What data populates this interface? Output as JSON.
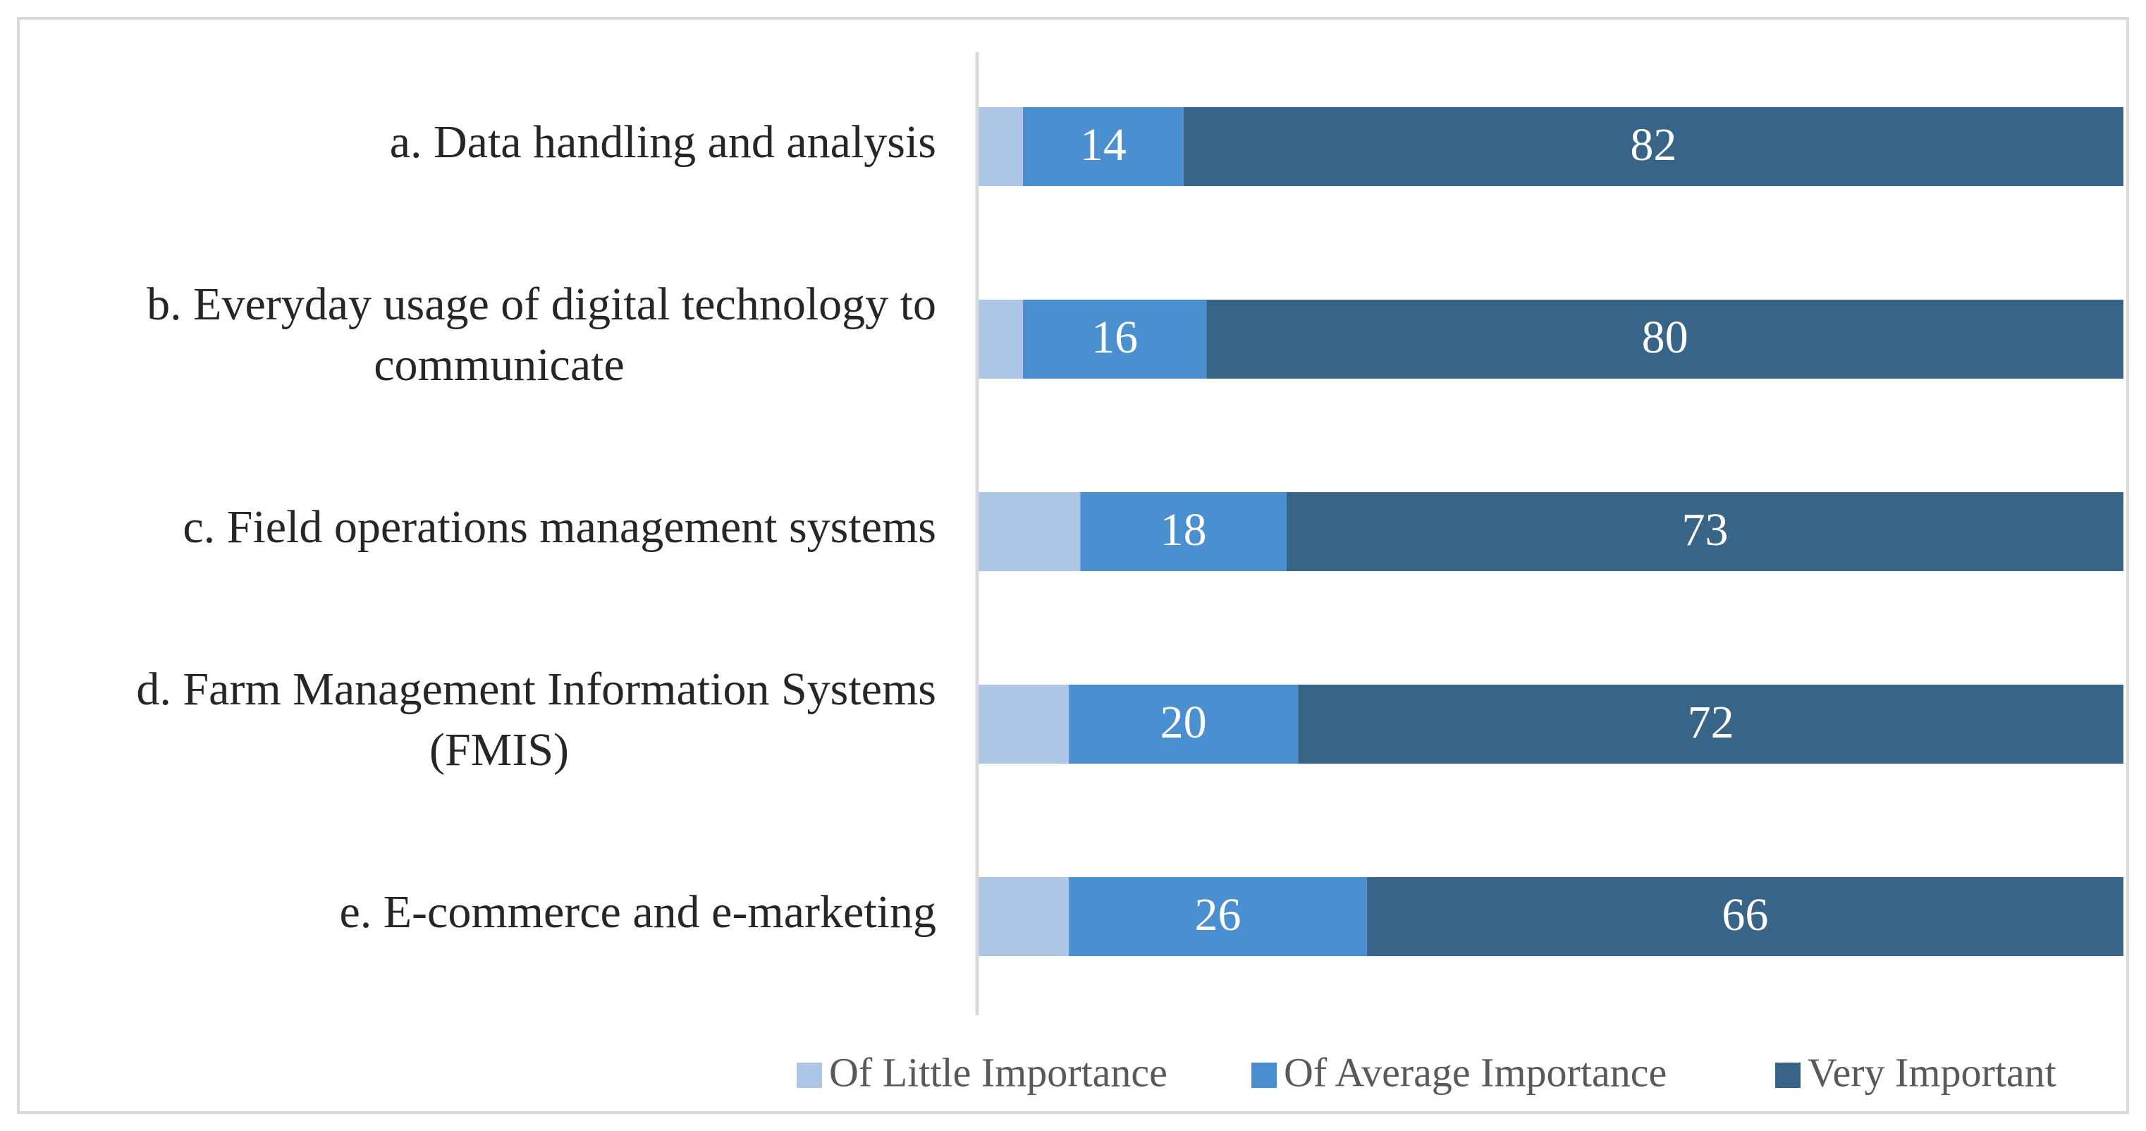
{
  "chart_data": {
    "type": "bar",
    "orientation": "horizontal",
    "stacked": true,
    "percent_stacked": true,
    "categories": [
      [
        "a. Data handling and analysis"
      ],
      [
        "b. Everyday usage of digital technology to",
        "communicate"
      ],
      [
        "c. Field operations management systems"
      ],
      [
        "d. Farm Management Information Systems",
        "(FMIS)"
      ],
      [
        "e. E-commerce and e-marketing"
      ]
    ],
    "series": [
      {
        "name": "Of Little Importance",
        "color": "#adc6e5",
        "values": [
          4,
          4,
          9,
          8,
          8
        ],
        "show_labels": false
      },
      {
        "name": "Of Average Importance",
        "color": "#4a8fd0",
        "values": [
          14,
          16,
          18,
          20,
          26
        ],
        "show_labels": true
      },
      {
        "name": "Very Important",
        "color": "#386487",
        "values": [
          82,
          80,
          73,
          72,
          66
        ],
        "show_labels": true
      }
    ],
    "title": "",
    "xlabel": "",
    "ylabel": "",
    "xlim": [
      0,
      100
    ],
    "grid": false,
    "legend_position": "bottom-right"
  },
  "colors": {
    "axis": "#d9d9d9",
    "border": "#d9d9d9",
    "label_text": "#262626",
    "legend_text": "#595959",
    "value_text": "#ffffff"
  }
}
